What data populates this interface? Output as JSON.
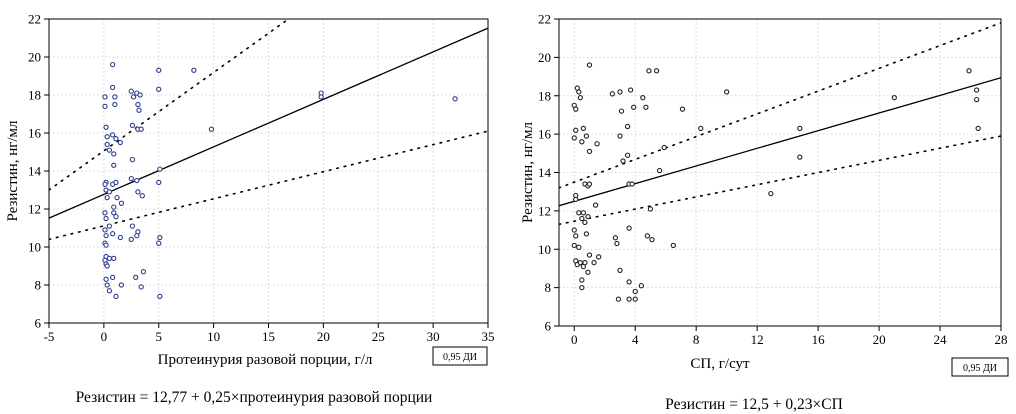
{
  "chart_data": [
    {
      "type": "scatter",
      "xlabel": "Протеинурия разовой порции, г/л",
      "ylabel": "Резистин, нг/мл",
      "xlim": [
        -5,
        35
      ],
      "ylim": [
        6,
        22
      ],
      "xticks": [
        "-5",
        "0",
        "5",
        "10",
        "15",
        "20",
        "25",
        "30",
        "35"
      ],
      "yticks": [
        "6",
        "8",
        "10",
        "12",
        "14",
        "16",
        "18",
        "20",
        "22"
      ],
      "grid": true,
      "legend": "0,95 ДИ",
      "equation": "Резистин = 12,77 + 0,25×протеинурия разовой порции",
      "point_color": "#2e3d8f",
      "regression": {
        "intercept": 12.77,
        "slope": 0.25
      },
      "ci_lines": [
        {
          "x": [
            -5,
            35
          ],
          "y": [
            10.4,
            16.1
          ]
        },
        {
          "x": [
            -5,
            35
          ],
          "y": [
            13.0,
            29.5
          ]
        }
      ],
      "points": [
        {
          "x": 0.1,
          "y": 17.9
        },
        {
          "x": 0.1,
          "y": 17.4
        },
        {
          "x": 0.2,
          "y": 16.3
        },
        {
          "x": 0.3,
          "y": 15.8
        },
        {
          "x": 0.3,
          "y": 15.4
        },
        {
          "x": 0.2,
          "y": 13.4
        },
        {
          "x": 0.1,
          "y": 13.3
        },
        {
          "x": 0.2,
          "y": 13.0
        },
        {
          "x": 0.3,
          "y": 12.6
        },
        {
          "x": 0.1,
          "y": 11.8
        },
        {
          "x": 0.2,
          "y": 11.5
        },
        {
          "x": 0.1,
          "y": 10.9
        },
        {
          "x": 0.2,
          "y": 10.6
        },
        {
          "x": 0.1,
          "y": 10.2
        },
        {
          "x": 0.2,
          "y": 10.1
        },
        {
          "x": 0.2,
          "y": 9.5
        },
        {
          "x": 0.1,
          "y": 9.3
        },
        {
          "x": 0.2,
          "y": 9.1
        },
        {
          "x": 0.3,
          "y": 9.0
        },
        {
          "x": 0.2,
          "y": 8.3
        },
        {
          "x": 0.3,
          "y": 8.0
        },
        {
          "x": 0.5,
          "y": 15.1
        },
        {
          "x": 0.5,
          "y": 12.9
        },
        {
          "x": 0.5,
          "y": 11.1
        },
        {
          "x": 0.5,
          "y": 9.4
        },
        {
          "x": 0.5,
          "y": 7.7
        },
        {
          "x": 0.8,
          "y": 19.6
        },
        {
          "x": 0.8,
          "y": 18.4
        },
        {
          "x": 0.8,
          "y": 15.9
        },
        {
          "x": 0.9,
          "y": 14.9
        },
        {
          "x": 0.9,
          "y": 14.3
        },
        {
          "x": 0.8,
          "y": 13.3
        },
        {
          "x": 0.9,
          "y": 12.1
        },
        {
          "x": 0.9,
          "y": 11.8
        },
        {
          "x": 0.8,
          "y": 10.7
        },
        {
          "x": 0.9,
          "y": 9.4
        },
        {
          "x": 0.8,
          "y": 8.4
        },
        {
          "x": 1.0,
          "y": 17.9
        },
        {
          "x": 1.0,
          "y": 17.5
        },
        {
          "x": 1.1,
          "y": 15.7
        },
        {
          "x": 1.1,
          "y": 13.4
        },
        {
          "x": 1.2,
          "y": 12.6
        },
        {
          "x": 1.1,
          "y": 11.6
        },
        {
          "x": 1.1,
          "y": 7.4
        },
        {
          "x": 1.5,
          "y": 15.5
        },
        {
          "x": 1.6,
          "y": 12.3
        },
        {
          "x": 1.5,
          "y": 10.5
        },
        {
          "x": 1.6,
          "y": 8.0
        },
        {
          "x": 2.5,
          "y": 18.2
        },
        {
          "x": 2.7,
          "y": 17.9
        },
        {
          "x": 2.6,
          "y": 16.4
        },
        {
          "x": 2.6,
          "y": 14.6
        },
        {
          "x": 2.5,
          "y": 13.6
        },
        {
          "x": 2.6,
          "y": 11.1
        },
        {
          "x": 2.5,
          "y": 10.4
        },
        {
          "x": 3.0,
          "y": 18.1
        },
        {
          "x": 3.1,
          "y": 17.5
        },
        {
          "x": 3.2,
          "y": 17.2
        },
        {
          "x": 3.1,
          "y": 16.2
        },
        {
          "x": 3.0,
          "y": 13.5
        },
        {
          "x": 3.1,
          "y": 12.9
        },
        {
          "x": 3.0,
          "y": 10.6
        },
        {
          "x": 3.1,
          "y": 10.8
        },
        {
          "x": 2.9,
          "y": 8.4
        },
        {
          "x": 3.3,
          "y": 18.0
        },
        {
          "x": 3.4,
          "y": 16.2
        },
        {
          "x": 3.5,
          "y": 12.7
        },
        {
          "x": 3.6,
          "y": 8.7
        },
        {
          "x": 3.4,
          "y": 7.9
        },
        {
          "x": 5.0,
          "y": 19.3
        },
        {
          "x": 5.0,
          "y": 18.3
        },
        {
          "x": 5.1,
          "y": 14.1
        },
        {
          "x": 5.0,
          "y": 13.4
        },
        {
          "x": 5.1,
          "y": 10.5
        },
        {
          "x": 5.0,
          "y": 10.2
        },
        {
          "x": 5.1,
          "y": 7.4
        },
        {
          "x": 8.2,
          "y": 19.3
        },
        {
          "x": 9.8,
          "y": 16.2
        },
        {
          "x": 19.8,
          "y": 18.1
        },
        {
          "x": 19.8,
          "y": 17.9
        },
        {
          "x": 32.0,
          "y": 17.8
        }
      ]
    },
    {
      "type": "scatter",
      "xlabel": "СП, г/сут",
      "ylabel": "Резистин, нг/мл",
      "xlim": [
        -1,
        28
      ],
      "ylim": [
        6,
        22
      ],
      "xticks": [
        "0",
        "4",
        "8",
        "12",
        "16",
        "20",
        "24",
        "28"
      ],
      "xtick_values": [
        0,
        4,
        8,
        12,
        16,
        20,
        24,
        28
      ],
      "yticks": [
        "6",
        "8",
        "10",
        "12",
        "14",
        "16",
        "18",
        "20",
        "22"
      ],
      "grid": true,
      "legend": "0,95 ДИ",
      "equation": "Резистин = 12,5 + 0,23×СП",
      "point_color": "#222222",
      "regression": {
        "intercept": 12.5,
        "slope": 0.23
      },
      "ci_lines": [
        {
          "x": [
            -1,
            28
          ],
          "y": [
            11.3,
            15.9
          ]
        },
        {
          "x": [
            -1,
            28
          ],
          "y": [
            13.2,
            21.8
          ]
        }
      ],
      "points": [
        {
          "x": 0.0,
          "y": 17.5
        },
        {
          "x": 0.1,
          "y": 17.3
        },
        {
          "x": 0.1,
          "y": 16.2
        },
        {
          "x": 0.0,
          "y": 15.8
        },
        {
          "x": 0.1,
          "y": 12.8
        },
        {
          "x": 0.1,
          "y": 12.6
        },
        {
          "x": 0.0,
          "y": 11.0
        },
        {
          "x": 0.1,
          "y": 10.7
        },
        {
          "x": 0.0,
          "y": 10.2
        },
        {
          "x": 0.1,
          "y": 9.4
        },
        {
          "x": 0.2,
          "y": 9.2
        },
        {
          "x": 0.2,
          "y": 18.4
        },
        {
          "x": 0.3,
          "y": 18.2
        },
        {
          "x": 0.3,
          "y": 11.9
        },
        {
          "x": 0.3,
          "y": 10.1
        },
        {
          "x": 0.4,
          "y": 17.9
        },
        {
          "x": 0.4,
          "y": 9.3
        },
        {
          "x": 0.5,
          "y": 15.6
        },
        {
          "x": 0.5,
          "y": 11.6
        },
        {
          "x": 0.5,
          "y": 8.4
        },
        {
          "x": 0.5,
          "y": 8.0
        },
        {
          "x": 0.6,
          "y": 16.3
        },
        {
          "x": 0.6,
          "y": 11.9
        },
        {
          "x": 0.6,
          "y": 9.1
        },
        {
          "x": 0.7,
          "y": 13.4
        },
        {
          "x": 0.7,
          "y": 11.4
        },
        {
          "x": 0.7,
          "y": 9.3
        },
        {
          "x": 0.8,
          "y": 15.9
        },
        {
          "x": 0.8,
          "y": 10.8
        },
        {
          "x": 0.9,
          "y": 13.3
        },
        {
          "x": 0.9,
          "y": 11.7
        },
        {
          "x": 0.9,
          "y": 8.8
        },
        {
          "x": 1.0,
          "y": 19.6
        },
        {
          "x": 1.0,
          "y": 15.1
        },
        {
          "x": 1.0,
          "y": 13.4
        },
        {
          "x": 1.0,
          "y": 9.7
        },
        {
          "x": 1.3,
          "y": 9.3
        },
        {
          "x": 1.4,
          "y": 12.3
        },
        {
          "x": 1.5,
          "y": 15.5
        },
        {
          "x": 1.6,
          "y": 9.6
        },
        {
          "x": 2.5,
          "y": 18.1
        },
        {
          "x": 2.7,
          "y": 10.6
        },
        {
          "x": 2.8,
          "y": 10.3
        },
        {
          "x": 2.9,
          "y": 7.4
        },
        {
          "x": 3.0,
          "y": 18.2
        },
        {
          "x": 3.0,
          "y": 15.9
        },
        {
          "x": 3.0,
          "y": 8.9
        },
        {
          "x": 3.1,
          "y": 17.2
        },
        {
          "x": 3.2,
          "y": 14.6
        },
        {
          "x": 3.5,
          "y": 16.4
        },
        {
          "x": 3.5,
          "y": 14.9
        },
        {
          "x": 3.6,
          "y": 13.4
        },
        {
          "x": 3.6,
          "y": 11.1
        },
        {
          "x": 3.6,
          "y": 8.3
        },
        {
          "x": 3.6,
          "y": 7.4
        },
        {
          "x": 3.7,
          "y": 18.3
        },
        {
          "x": 3.8,
          "y": 13.4
        },
        {
          "x": 3.9,
          "y": 17.4
        },
        {
          "x": 4.0,
          "y": 7.8
        },
        {
          "x": 4.0,
          "y": 7.4
        },
        {
          "x": 4.4,
          "y": 8.1
        },
        {
          "x": 4.5,
          "y": 17.9
        },
        {
          "x": 4.7,
          "y": 17.4
        },
        {
          "x": 4.8,
          "y": 10.7
        },
        {
          "x": 4.9,
          "y": 19.3
        },
        {
          "x": 5.0,
          "y": 12.1
        },
        {
          "x": 5.1,
          "y": 10.5
        },
        {
          "x": 5.4,
          "y": 19.3
        },
        {
          "x": 5.6,
          "y": 14.1
        },
        {
          "x": 5.9,
          "y": 15.3
        },
        {
          "x": 6.5,
          "y": 10.2
        },
        {
          "x": 7.1,
          "y": 17.3
        },
        {
          "x": 8.3,
          "y": 16.3
        },
        {
          "x": 10.0,
          "y": 18.2
        },
        {
          "x": 12.9,
          "y": 12.9
        },
        {
          "x": 14.8,
          "y": 16.3
        },
        {
          "x": 14.8,
          "y": 14.8
        },
        {
          "x": 21.0,
          "y": 17.9
        },
        {
          "x": 25.9,
          "y": 19.3
        },
        {
          "x": 26.4,
          "y": 18.3
        },
        {
          "x": 26.4,
          "y": 17.8
        },
        {
          "x": 26.5,
          "y": 16.3
        }
      ]
    }
  ]
}
